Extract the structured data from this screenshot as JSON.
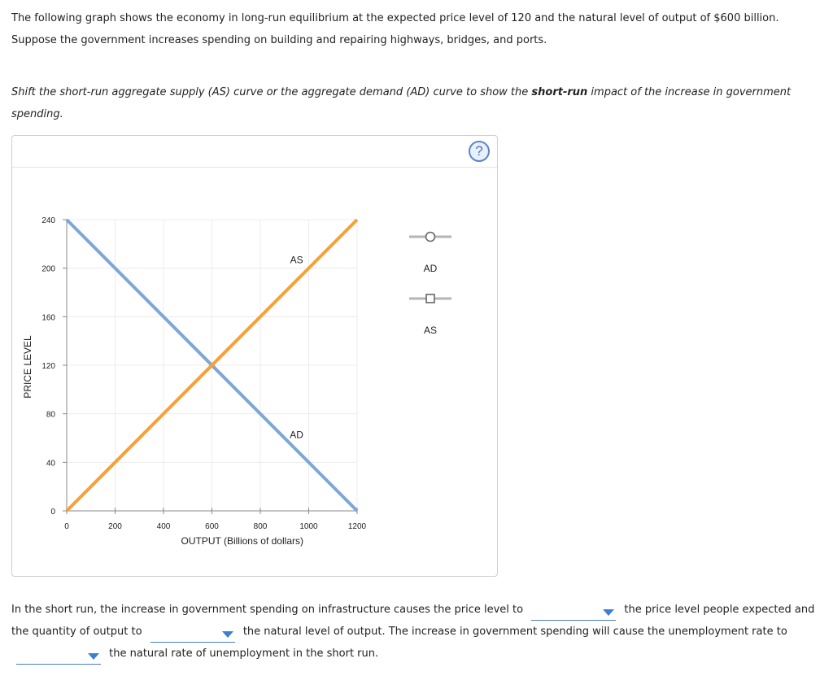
{
  "intro": {
    "line1": "The following graph shows the economy in long-run equilibrium at the expected price level of 120 and the natural level of output of $600 billion.",
    "line2": "Suppose the government increases spending on building and repairing highways, bridges, and ports."
  },
  "instruction": {
    "before": "Shift the short-run aggregate supply (AS) curve or the aggregate demand (AD) curve to show the ",
    "bold": "short-run",
    "after": " impact of the increase in government spending."
  },
  "help_button": {
    "label": "?"
  },
  "chart_data": {
    "type": "line",
    "xlabel": "OUTPUT (Billions of dollars)",
    "ylabel": "PRICE LEVEL",
    "xlim": [
      0,
      1200
    ],
    "ylim": [
      0,
      240
    ],
    "x_ticks": [
      0,
      200,
      400,
      600,
      800,
      1000,
      1200
    ],
    "y_ticks": [
      0,
      40,
      80,
      120,
      160,
      200,
      240
    ],
    "grid": true,
    "series": [
      {
        "name": "AD",
        "color": "#7ea6d8",
        "points": [
          [
            0,
            240
          ],
          [
            1200,
            0
          ]
        ]
      },
      {
        "name": "AS",
        "color": "#f7a03a",
        "points": [
          [
            0,
            0
          ],
          [
            1200,
            240
          ]
        ]
      }
    ],
    "curve_labels": [
      {
        "text": "AS",
        "x": 950,
        "y": 204
      },
      {
        "text": "AD",
        "x": 950,
        "y": 60
      }
    ]
  },
  "palette": {
    "title": "",
    "items": [
      {
        "label": "AD",
        "marker": "circle"
      },
      {
        "label": "AS",
        "marker": "square"
      }
    ]
  },
  "bottom": {
    "s1": "In the short run, the increase in government spending on infrastructure causes the price level to",
    "s2": "the price level people expected and the quantity of output to",
    "s3": "the natural level of output. The increase in government spending will cause the unemployment rate to",
    "s4": "the natural rate of unemployment in the short run.",
    "dropdown1": "",
    "dropdown2": "",
    "dropdown3": ""
  }
}
